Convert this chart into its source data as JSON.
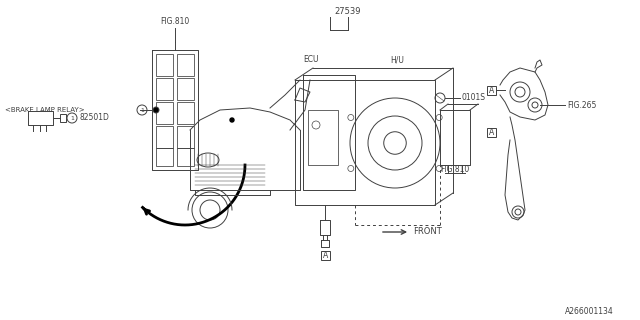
{
  "bg_color": "#ffffff",
  "line_color": "#404040",
  "text_color": "#404040",
  "fig_width": 6.4,
  "fig_height": 3.2,
  "dpi": 100,
  "label_27539": "27539",
  "label_ECU": "ECU",
  "label_HU": "H/U",
  "label_0101S": "0101S",
  "label_FIG810a": "FIG.810",
  "label_FIG810b": "FIG.810",
  "label_FIG265": "FIG.265",
  "label_BRAKE": "<BRAKE LAMP RELAY>",
  "label_82501D": "82501D",
  "label_FRONT": "FRONT",
  "label_A266001134": "A266001134",
  "label_A": "A",
  "label_1": "1"
}
